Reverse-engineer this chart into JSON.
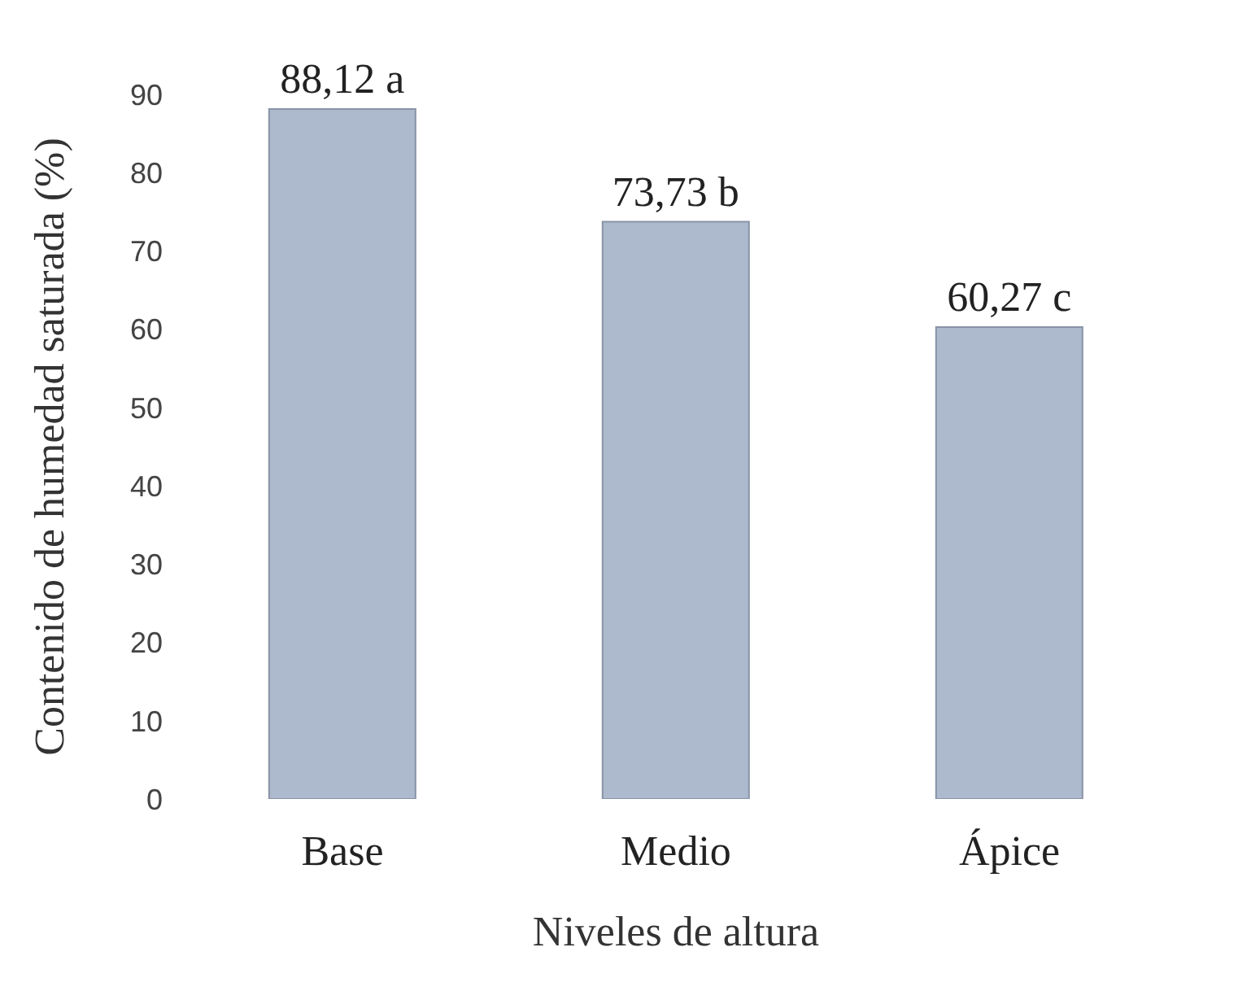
{
  "chart_data": {
    "type": "bar",
    "ylabel": "Contenido de humedad saturada (%)",
    "xlabel": "Niveles de altura",
    "categories": [
      "Base",
      "Medio",
      "Ápice"
    ],
    "values": [
      88.12,
      73.73,
      60.27
    ],
    "value_labels": [
      "88,12 a",
      "73,73 b",
      "60,27 c"
    ],
    "color": "#adb9cc",
    "ylim": [
      0,
      90
    ],
    "yticks": [
      0,
      10,
      20,
      30,
      40,
      50,
      60,
      70,
      80,
      90
    ],
    "grid": false,
    "legend": false
  }
}
